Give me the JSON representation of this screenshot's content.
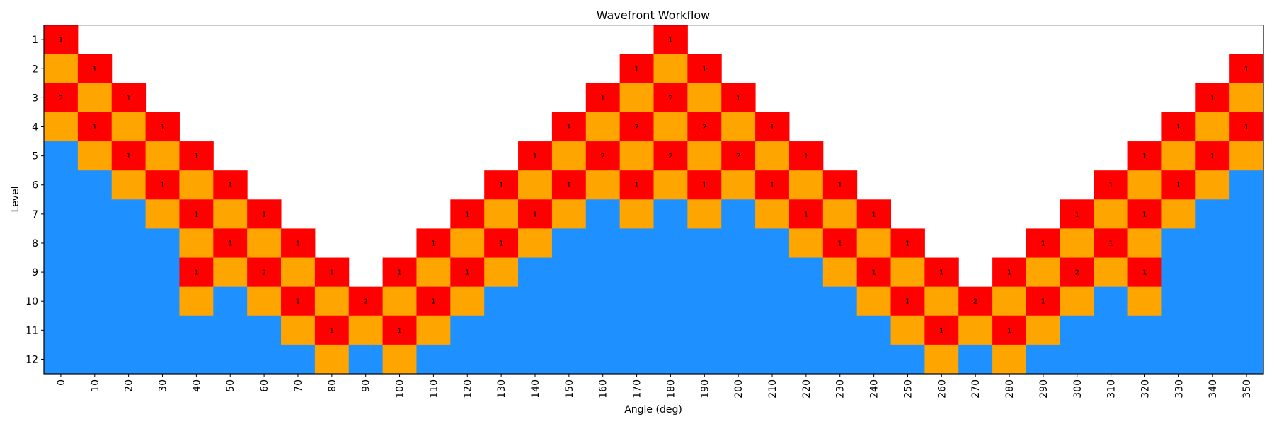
{
  "chart_data": {
    "type": "heatmap",
    "title": "Wavefront Workflow",
    "xlabel": "Angle (deg)",
    "ylabel": "Level",
    "x_categories": [
      0,
      10,
      20,
      30,
      40,
      50,
      60,
      70,
      80,
      90,
      100,
      110,
      120,
      130,
      140,
      150,
      160,
      170,
      180,
      190,
      200,
      210,
      220,
      230,
      240,
      250,
      260,
      270,
      280,
      290,
      300,
      310,
      320,
      330,
      340,
      350
    ],
    "y_categories": [
      1,
      2,
      3,
      4,
      5,
      6,
      7,
      8,
      9,
      10,
      11,
      12
    ],
    "y_inverted": true,
    "grid": false,
    "cell_key": {
      ".": "empty",
      "o": "orange",
      "b": "blue",
      "digit": "red cell labelled with the digit"
    },
    "colors": {
      "empty": "#ffffff",
      "red": "#ff0000",
      "orange": "#ffa500",
      "blue": "#1e90ff"
    },
    "columns": [
      "1o2obbbbbbbb",
      ".1o1obbbbbbb",
      "..1o1obbbbbb",
      "...1o1obbbbb",
      "....1o1o1obb",
      ".....1o1obbb",
      "......1o2obb",
      ".......1o1ob",
      "........1o1o",
      ".........2ob",
      "........1o1o",
      ".......1o1ob",
      "......1o1obb",
      ".....1o1obbb",
      "....1o1obbbb",
      "...1o1obbbbb",
      "..1o2obbbbbb",
      ".1o2o1obbbbb",
      "1o2o2obbbbbb",
      ".1o2o1obbbbb",
      "..1o2obbbbbb",
      "...1o1obbbbb",
      "....1o1obbbb",
      ".....1o1obbb",
      "......1o1obb",
      ".......1o1ob",
      "........1o1o",
      ".........2ob",
      "........1o1o",
      ".......1o1ob",
      "......1o2obb",
      ".....1o1obbb",
      "....1o1o1obb",
      "...1o1obbbbb",
      "..1o1obbbbbb",
      ".1o1obbbbbbb"
    ]
  }
}
